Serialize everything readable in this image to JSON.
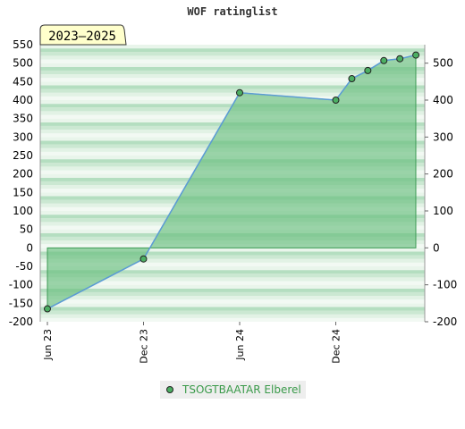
{
  "chart_data": {
    "type": "area",
    "title": "WOF ratinglist",
    "period_label": "2023–2025",
    "x_tick_labels": [
      "Jun 23",
      "Dec 23",
      "Jun 24",
      "Dec 24"
    ],
    "ylim": [
      -200,
      550
    ],
    "y_left_ticks": [
      -200,
      -150,
      -100,
      -50,
      0,
      50,
      100,
      150,
      200,
      250,
      300,
      350,
      400,
      450,
      500,
      550
    ],
    "y_right_ticks": [
      -200,
      -100,
      0,
      100,
      200,
      300,
      400,
      500
    ],
    "legend_position": "bottom-center",
    "series": [
      {
        "name": "TSOGTBAATAR Elberel",
        "x": [
          "2023-06",
          "2023-12",
          "2024-06",
          "2024-12",
          "2025-01",
          "2025-02",
          "2025-03",
          "2025-04",
          "2025-05"
        ],
        "values": [
          -165,
          -30,
          420,
          400,
          458,
          480,
          507,
          512,
          522
        ]
      }
    ],
    "colors": {
      "line": "#5b9bd5",
      "fill": "#6abf7f",
      "marker": "#4caf63",
      "legend_text": "#3a9a4a",
      "band_light": "#eef7ef",
      "band_dark": "#9fd3ad",
      "badge_bg": "#ffffcc"
    }
  }
}
